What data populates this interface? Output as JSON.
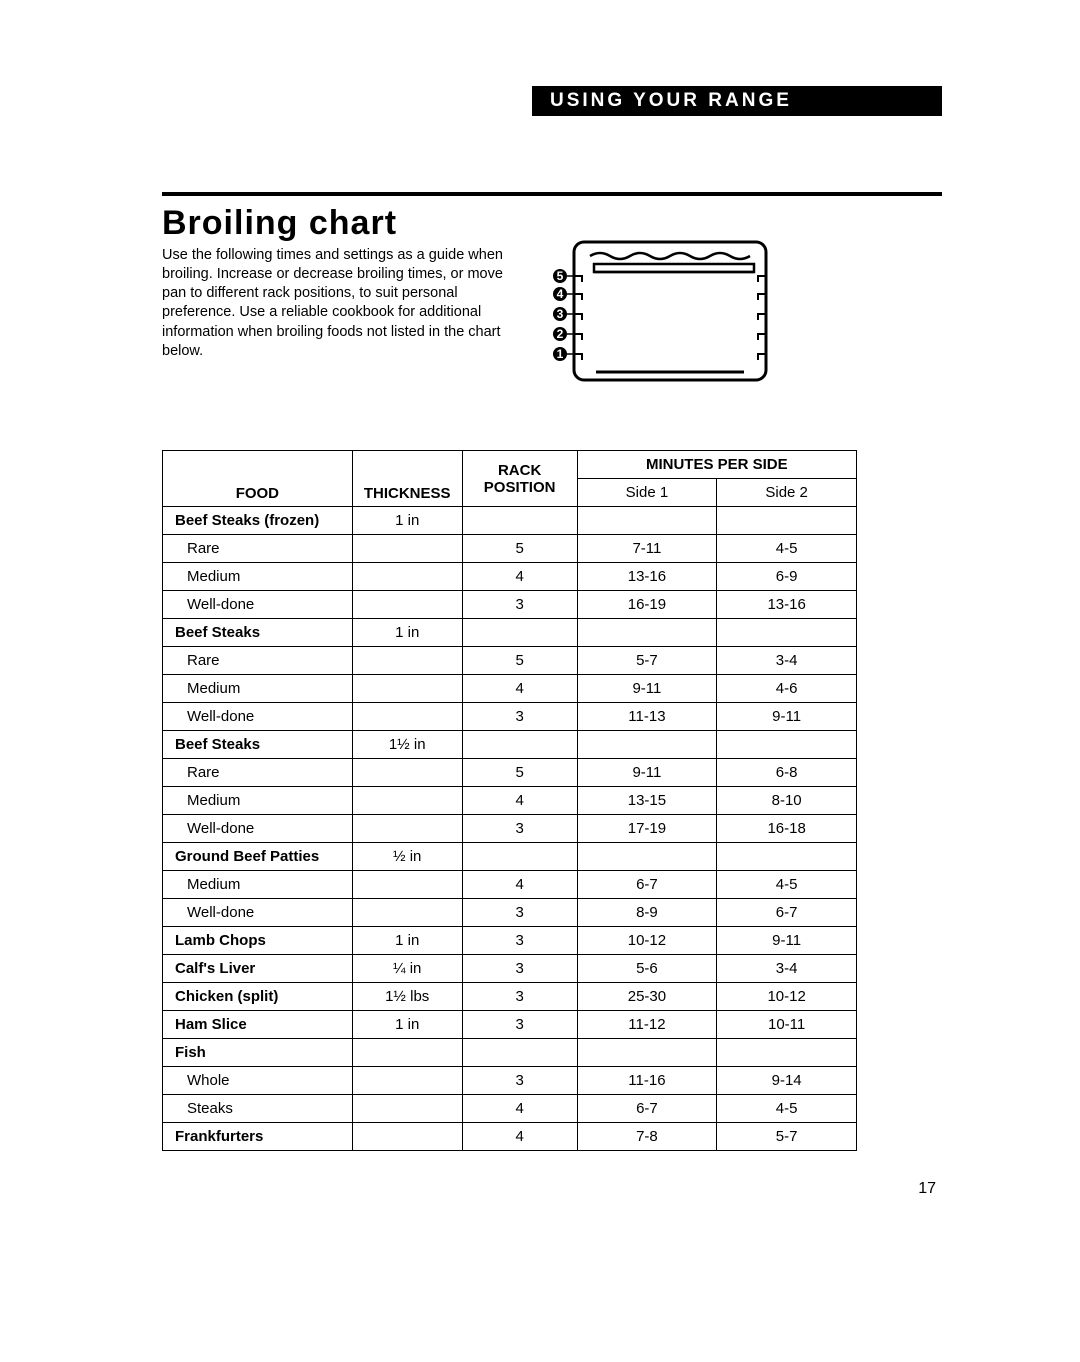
{
  "header": {
    "label": "USING YOUR RANGE"
  },
  "title": "Broiling chart",
  "intro": "Use the following times and settings as a guide when broiling. Increase or decrease broiling times, or move pan to different rack positions, to suit personal preference. Use a reliable cookbook for additional information when broiling foods not listed in the chart below.",
  "diagram": {
    "rack_labels": [
      "5",
      "4",
      "3",
      "2",
      "1"
    ]
  },
  "table": {
    "headers": {
      "food": "FOOD",
      "thickness": "THICKNESS",
      "rack": "RACK POSITION",
      "mps": "MINUTES PER SIDE",
      "side1": "Side 1",
      "side2": "Side 2"
    },
    "rows": [
      {
        "food": "Beef Steaks (frozen)",
        "bold": true,
        "thickness": "1 in",
        "rack": "",
        "side1": "",
        "side2": ""
      },
      {
        "food": "Rare",
        "indent": true,
        "thickness": "",
        "rack": "5",
        "side1": "7-11",
        "side2": "4-5"
      },
      {
        "food": "Medium",
        "indent": true,
        "thickness": "",
        "rack": "4",
        "side1": "13-16",
        "side2": "6-9"
      },
      {
        "food": "Well-done",
        "indent": true,
        "thickness": "",
        "rack": "3",
        "side1": "16-19",
        "side2": "13-16"
      },
      {
        "food": "Beef Steaks",
        "bold": true,
        "thickness": "1 in",
        "rack": "",
        "side1": "",
        "side2": ""
      },
      {
        "food": "Rare",
        "indent": true,
        "thickness": "",
        "rack": "5",
        "side1": "5-7",
        "side2": "3-4"
      },
      {
        "food": "Medium",
        "indent": true,
        "thickness": "",
        "rack": "4",
        "side1": "9-11",
        "side2": "4-6"
      },
      {
        "food": "Well-done",
        "indent": true,
        "thickness": "",
        "rack": "3",
        "side1": "11-13",
        "side2": "9-11"
      },
      {
        "food": "Beef Steaks",
        "bold": true,
        "thickness": "1½ in",
        "rack": "",
        "side1": "",
        "side2": ""
      },
      {
        "food": "Rare",
        "indent": true,
        "thickness": "",
        "rack": "5",
        "side1": "9-11",
        "side2": "6-8"
      },
      {
        "food": "Medium",
        "indent": true,
        "thickness": "",
        "rack": "4",
        "side1": "13-15",
        "side2": "8-10"
      },
      {
        "food": "Well-done",
        "indent": true,
        "thickness": "",
        "rack": "3",
        "side1": "17-19",
        "side2": "16-18"
      },
      {
        "food": "Ground Beef Patties",
        "bold": true,
        "thickness": "½ in",
        "rack": "",
        "side1": "",
        "side2": ""
      },
      {
        "food": "Medium",
        "indent": true,
        "thickness": "",
        "rack": "4",
        "side1": "6-7",
        "side2": "4-5"
      },
      {
        "food": "Well-done",
        "indent": true,
        "thickness": "",
        "rack": "3",
        "side1": "8-9",
        "side2": "6-7"
      },
      {
        "food": "Lamb Chops",
        "bold": true,
        "thickness": "1 in",
        "rack": "3",
        "side1": "10-12",
        "side2": "9-11"
      },
      {
        "food": "Calf's Liver",
        "bold": true,
        "thickness": "¼ in",
        "rack": "3",
        "side1": "5-6",
        "side2": "3-4"
      },
      {
        "food": "Chicken (split)",
        "bold": true,
        "thickness": "1½ lbs",
        "rack": "3",
        "side1": "25-30",
        "side2": "10-12"
      },
      {
        "food": "Ham Slice",
        "bold": true,
        "thickness": "1 in",
        "rack": "3",
        "side1": "11-12",
        "side2": "10-11"
      },
      {
        "food": "Fish",
        "bold": true,
        "thickness": "",
        "rack": "",
        "side1": "",
        "side2": ""
      },
      {
        "food": "Whole",
        "indent": true,
        "thickness": "",
        "rack": "3",
        "side1": "11-16",
        "side2": "9-14"
      },
      {
        "food": "Steaks",
        "indent": true,
        "thickness": "",
        "rack": "4",
        "side1": "6-7",
        "side2": "4-5"
      },
      {
        "food": "Frankfurters",
        "bold": true,
        "thickness": "",
        "rack": "4",
        "side1": "7-8",
        "side2": "5-7"
      }
    ]
  },
  "page_number": "17"
}
